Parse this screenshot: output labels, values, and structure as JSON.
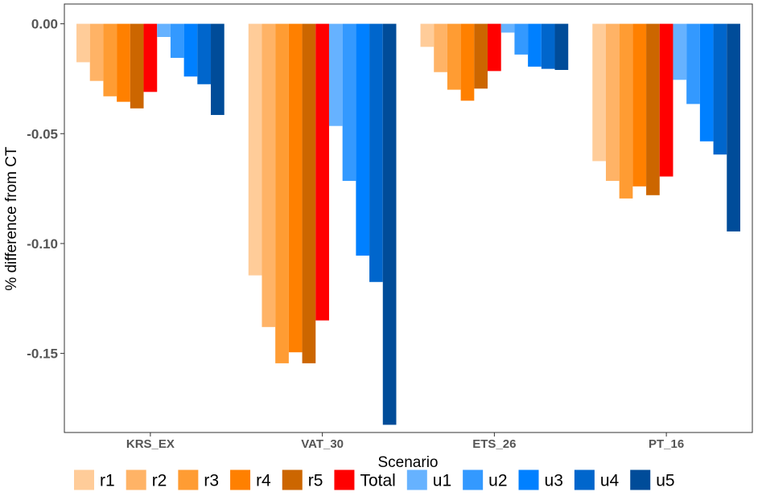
{
  "chart_data": {
    "type": "bar",
    "xlabel": "Scenario",
    "ylabel": "% difference from CT",
    "ylim": [
      -0.186,
      0.009
    ],
    "yticks": [
      0.0,
      -0.05,
      -0.1,
      -0.15
    ],
    "ytick_labels": [
      "0.00",
      "-0.05",
      "-0.10",
      "-0.15"
    ],
    "categories": [
      "KRS_EX",
      "VAT_30",
      "ETS_26",
      "PT_16"
    ],
    "legend_position": "bottom",
    "grid": false,
    "series": [
      {
        "name": "r1",
        "color": "#FFCC99",
        "values": [
          -0.0175,
          -0.1145,
          -0.0105,
          -0.0625
        ]
      },
      {
        "name": "r2",
        "color": "#FFB366",
        "values": [
          -0.026,
          -0.138,
          -0.022,
          -0.0715
        ]
      },
      {
        "name": "r3",
        "color": "#FF9C33",
        "values": [
          -0.033,
          -0.1545,
          -0.03,
          -0.0795
        ]
      },
      {
        "name": "r4",
        "color": "#FF8000",
        "values": [
          -0.0355,
          -0.1495,
          -0.035,
          -0.074
        ]
      },
      {
        "name": "r5",
        "color": "#CC6600",
        "values": [
          -0.0385,
          -0.1545,
          -0.0295,
          -0.078
        ]
      },
      {
        "name": "Total",
        "color": "#FF0000",
        "values": [
          -0.031,
          -0.135,
          -0.0215,
          -0.0695
        ]
      },
      {
        "name": "u1",
        "color": "#66B2FF",
        "values": [
          -0.006,
          -0.0465,
          -0.004,
          -0.0255
        ]
      },
      {
        "name": "u2",
        "color": "#3399FF",
        "values": [
          -0.0155,
          -0.0715,
          -0.014,
          -0.0365
        ]
      },
      {
        "name": "u3",
        "color": "#0080FF",
        "values": [
          -0.024,
          -0.1055,
          -0.0195,
          -0.0535
        ]
      },
      {
        "name": "u4",
        "color": "#0066CC",
        "values": [
          -0.0275,
          -0.1175,
          -0.0205,
          -0.0595
        ]
      },
      {
        "name": "u5",
        "color": "#004C99",
        "values": [
          -0.0415,
          -0.1825,
          -0.021,
          -0.0945
        ]
      }
    ]
  }
}
